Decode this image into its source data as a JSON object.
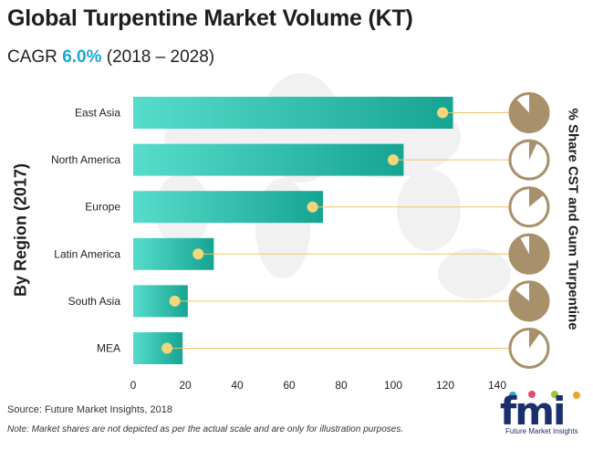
{
  "header": {
    "title": "Global Turpentine Market Volume (KT)",
    "cagr_label": "CAGR",
    "cagr_value": "6.0%",
    "cagr_period": "(2018 – 2028)"
  },
  "chart_data": {
    "type": "bar",
    "orientation": "horizontal",
    "ylabel": "By Region (2017)",
    "categories": [
      "East Asia",
      "North America",
      "Europe",
      "Latin America",
      "South Asia",
      "MEA"
    ],
    "values": [
      123,
      104,
      73,
      31,
      21,
      19
    ],
    "marker_values": [
      119,
      100,
      69,
      25,
      16,
      13
    ],
    "xlim": [
      0,
      140
    ],
    "xticks": [
      0,
      20,
      40,
      60,
      80,
      100,
      120,
      140
    ],
    "share_title": "% Share CST and Gum Turpentine",
    "share_pies": [
      {
        "region": "East Asia",
        "fraction": 0.88
      },
      {
        "region": "North America",
        "fraction": 0.07
      },
      {
        "region": "Europe",
        "fraction": 0.14
      },
      {
        "region": "Latin America",
        "fraction": 0.92
      },
      {
        "region": "South Asia",
        "fraction": 0.86
      },
      {
        "region": "MEA",
        "fraction": 0.1
      }
    ],
    "colors": {
      "bar_start": "#57dccb",
      "bar_end": "#16a493",
      "marker": "#f3d77a",
      "leader": "#f2c46a",
      "pie": "#a8916a"
    },
    "grid": false
  },
  "footer": {
    "source": "Source: Future Market Insights, 2018",
    "note": "Note:  Market shares are not depicted as per the actual scale and are only for illustration purposes.",
    "logo_text": "fmi",
    "logo_sub": "Future Market Insights"
  }
}
